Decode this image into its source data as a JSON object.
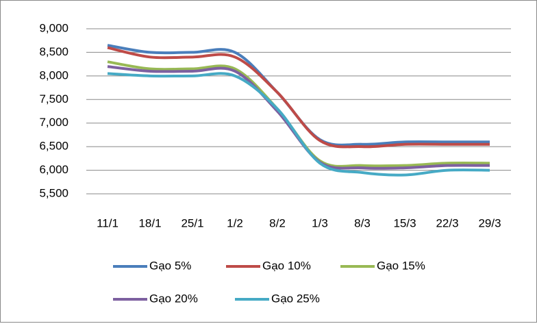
{
  "chart_data": {
    "type": "line",
    "categories": [
      "11/1",
      "18/1",
      "25/1",
      "1/2",
      "8/2",
      "1/3",
      "8/3",
      "15/3",
      "22/3",
      "29/3"
    ],
    "series": [
      {
        "name": "Gạo 5%",
        "color": "#4a7ebb",
        "values": [
          8650,
          8500,
          8500,
          8500,
          7650,
          6650,
          6550,
          6600,
          6600,
          6600
        ]
      },
      {
        "name": "Gạo 10%",
        "color": "#be4b48",
        "values": [
          8600,
          8400,
          8400,
          8400,
          7650,
          6630,
          6500,
          6550,
          6550,
          6550
        ]
      },
      {
        "name": "Gạo 15%",
        "color": "#98b954",
        "values": [
          8300,
          8150,
          8150,
          8150,
          7300,
          6200,
          6100,
          6100,
          6150,
          6150
        ]
      },
      {
        "name": "Gạo 20%",
        "color": "#7d60a0",
        "values": [
          8200,
          8100,
          8100,
          8100,
          7250,
          6170,
          6050,
          6050,
          6100,
          6100
        ]
      },
      {
        "name": "Gạo 25%",
        "color": "#46aac5",
        "values": [
          8050,
          8000,
          8000,
          8000,
          7300,
          6150,
          5950,
          5900,
          6000,
          6000
        ]
      }
    ],
    "ylim": [
      5500,
      9000
    ],
    "yticks": [
      {
        "value": 5500,
        "label": "5,500"
      },
      {
        "value": 6000,
        "label": "6,000"
      },
      {
        "value": 6500,
        "label": "6,500"
      },
      {
        "value": 7000,
        "label": "7,000"
      },
      {
        "value": 7500,
        "label": "7,500"
      },
      {
        "value": 8000,
        "label": "8,000"
      },
      {
        "value": 8500,
        "label": "8,500"
      },
      {
        "value": 9000,
        "label": "9,000"
      }
    ],
    "grid": true,
    "smooth": true,
    "legend": "bottom"
  }
}
